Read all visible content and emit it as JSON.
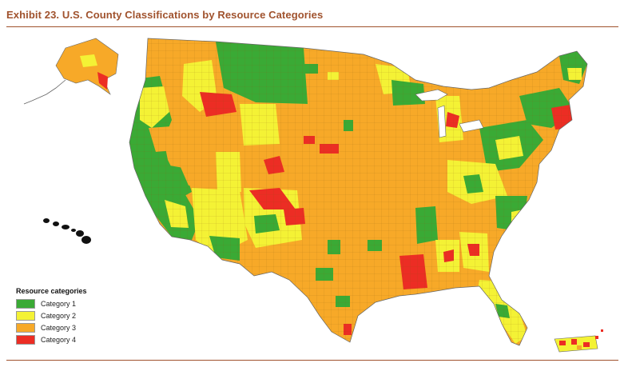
{
  "title": "Exhibit 23. U.S. County Classifications by Resource Categories",
  "legend": {
    "title": "Resource categories",
    "items": [
      {
        "label": "Category 1",
        "color": "#3aaa35"
      },
      {
        "label": "Category 2",
        "color": "#f4f235"
      },
      {
        "label": "Category 3",
        "color": "#f7a928"
      },
      {
        "label": "Category 4",
        "color": "#ec2d24"
      }
    ]
  },
  "colors": {
    "accent": "#a0522d",
    "cat1": "#3aaa35",
    "cat2": "#f4f235",
    "cat3": "#f7a928",
    "cat4": "#ec2d24",
    "border": "#555555"
  }
}
